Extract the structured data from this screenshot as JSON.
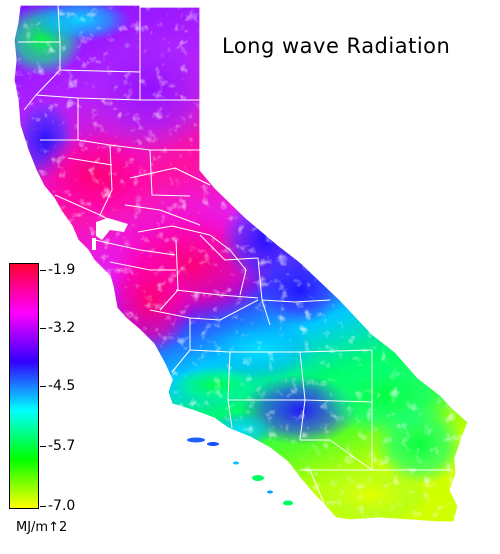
{
  "title": "Long wave Radiation",
  "legend": {
    "unit": "MJ/m↑2",
    "ticks": [
      "-1.9",
      "-3.2",
      "-4.5",
      "-5.7",
      "-7.0"
    ],
    "min": -7.0,
    "max": -1.9,
    "colors": [
      "#ff0033",
      "#ff00ff",
      "#3300ff",
      "#00ffff",
      "#00ff00",
      "#ffff00"
    ]
  }
}
